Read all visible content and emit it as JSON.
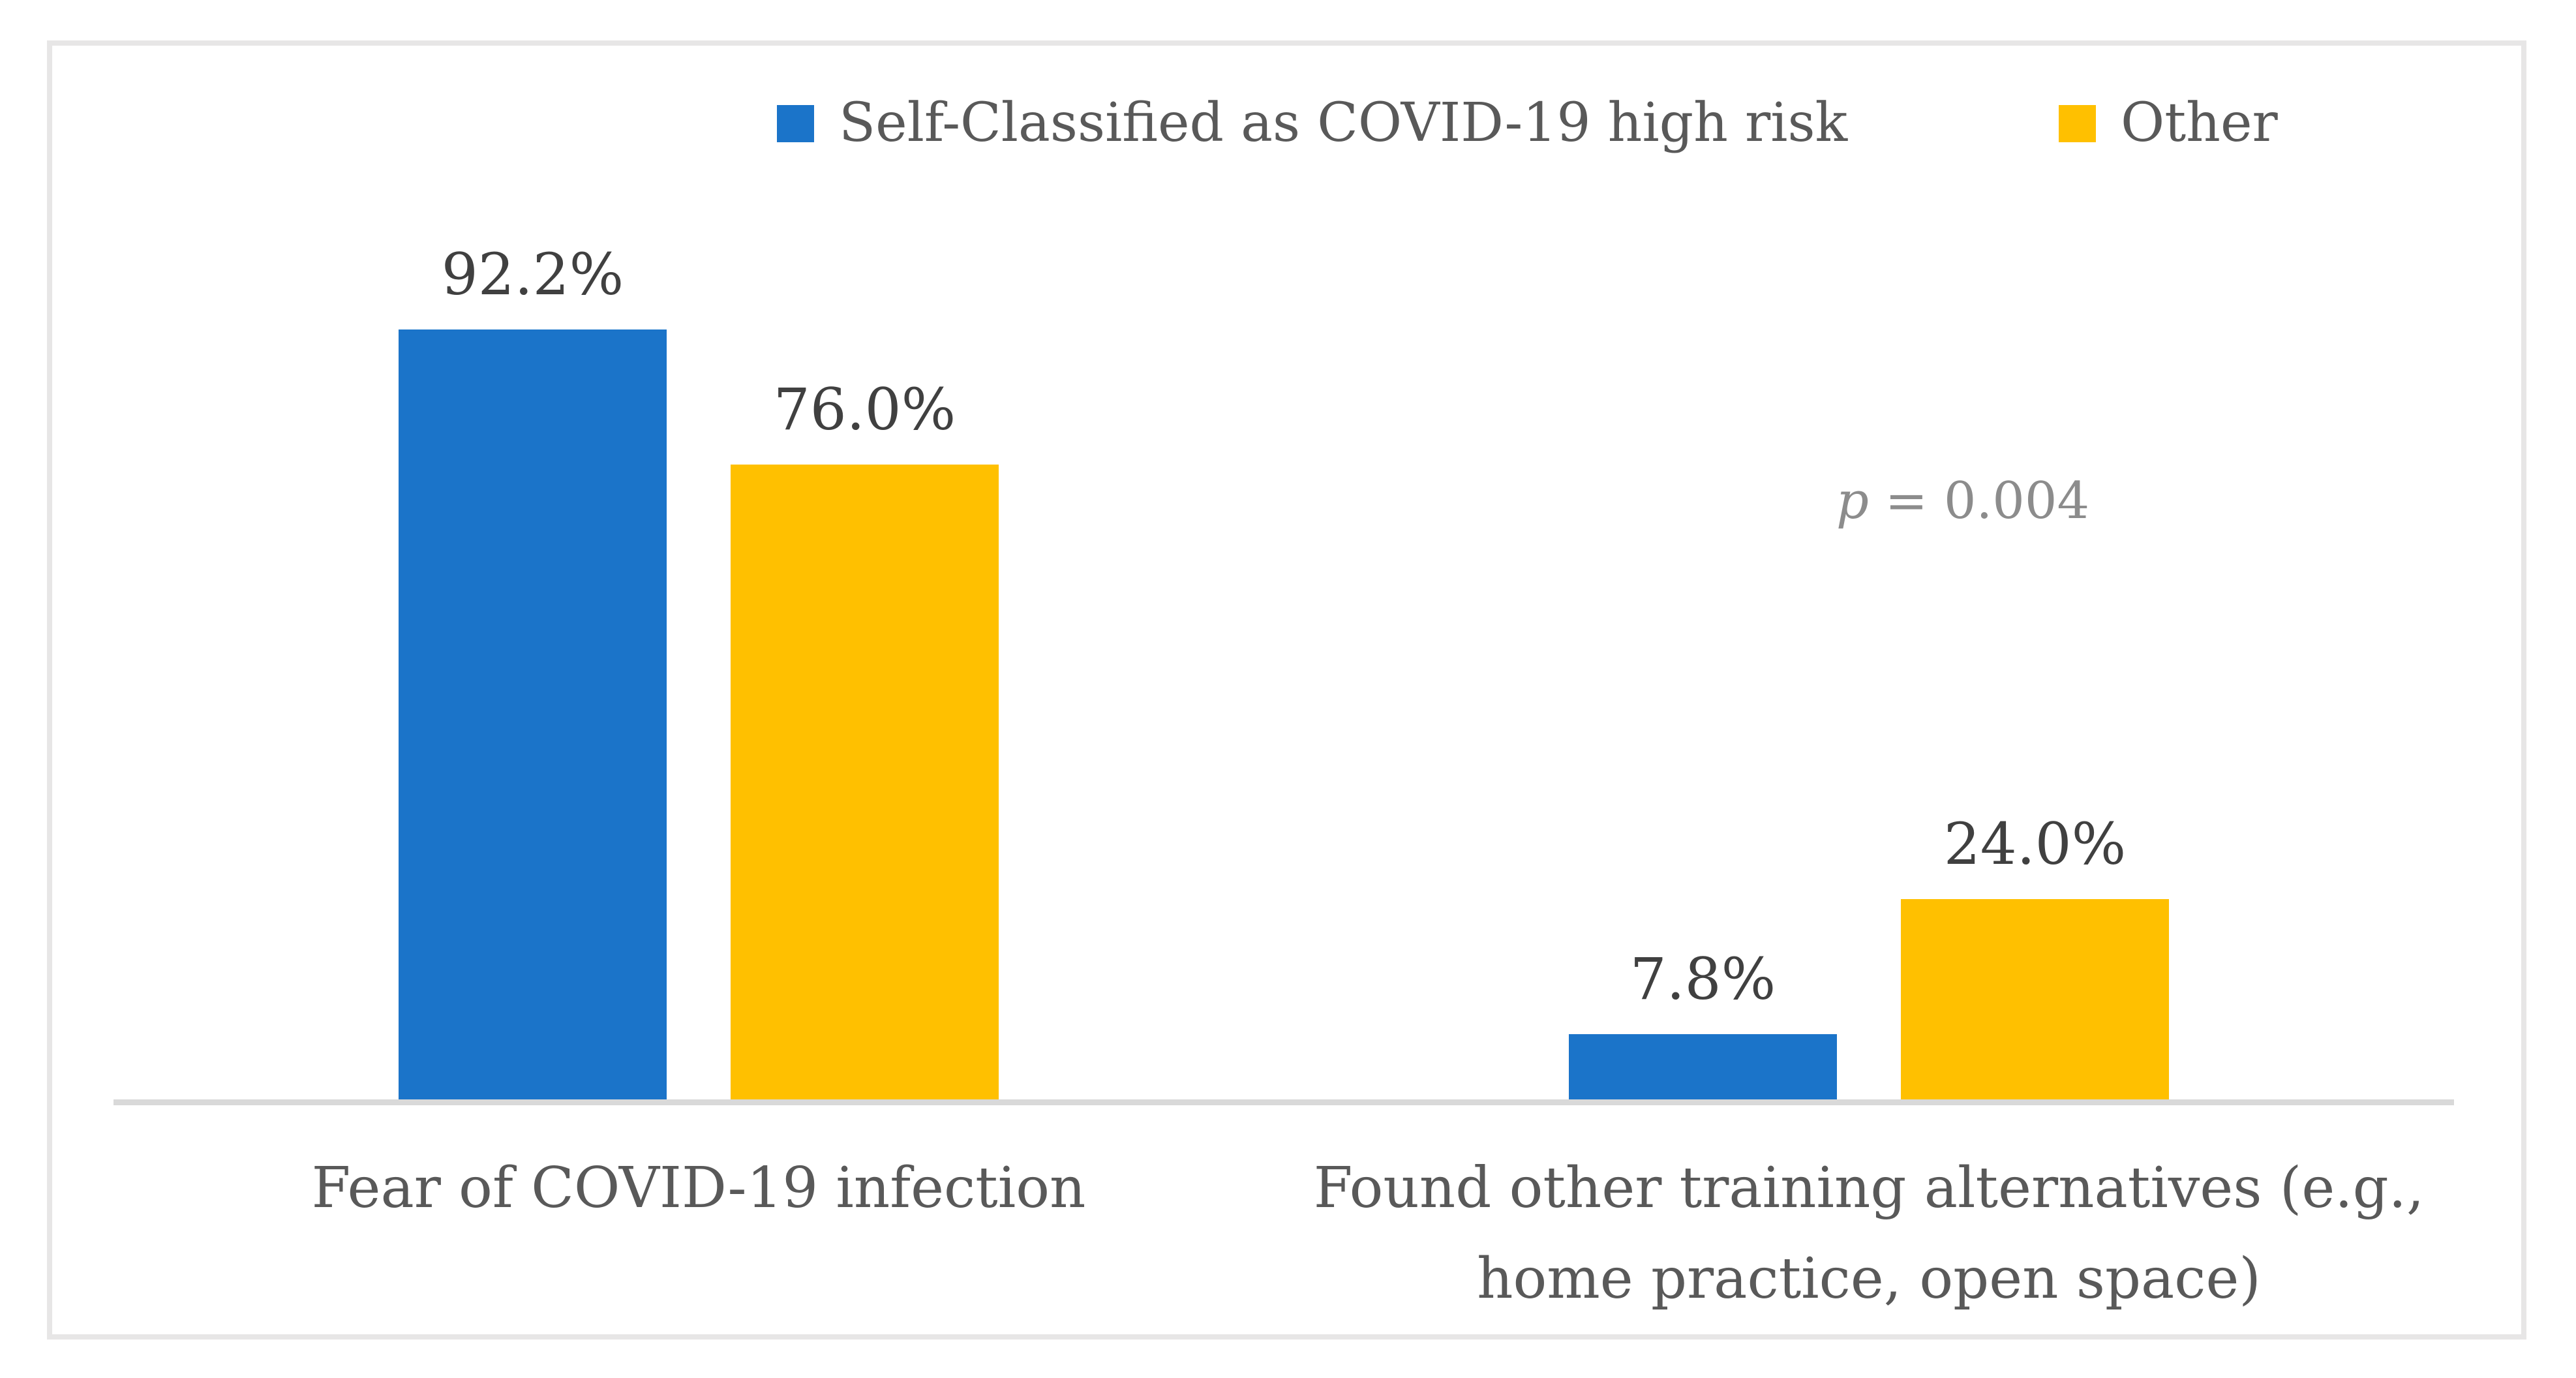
{
  "chart_data": {
    "type": "bar",
    "title": "",
    "categories": [
      "Fear of COVID-19 infection",
      "Found other training alternatives (e.g., home practice, open space)"
    ],
    "series": [
      {
        "name": "Self-Classified as COVID-19 high risk",
        "color": "#1B74C9",
        "values": [
          92.2,
          7.8
        ],
        "data_labels": [
          "92.2%",
          "7.8%"
        ]
      },
      {
        "name": "Other",
        "color": "#FFC000",
        "values": [
          76.0,
          24.0
        ],
        "data_labels": [
          "76.0%",
          "24.0%"
        ]
      }
    ],
    "ylim": [
      0,
      100
    ],
    "y_unit": "percent",
    "grid": false,
    "legend_position": "top",
    "annotation": {
      "var": "p",
      "rest": " = 0.004",
      "full_text": "p = 0.004"
    }
  },
  "colors": {
    "series_blue": "#1B74C9",
    "series_yellow": "#FFC000",
    "axis_line": "#D9D9D9",
    "frame_border": "#E7E6E6",
    "value_label_text": "#404040",
    "category_label_text": "#595959",
    "legend_text": "#595959",
    "annotation_text": "#8C8C8C",
    "background": "#FFFFFF"
  }
}
